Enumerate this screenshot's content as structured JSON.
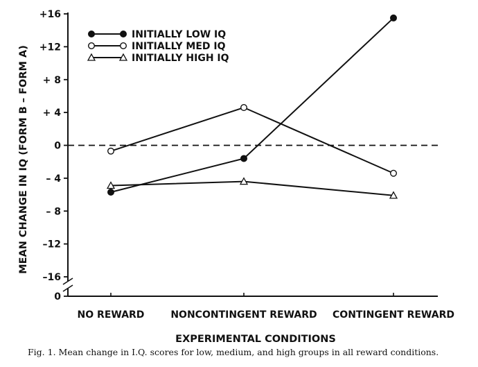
{
  "caption": "Fig. 1. Mean change in I.Q. scores for low, medium, and high groups in all reward conditions.",
  "chart_data": {
    "type": "line",
    "title": "",
    "xlabel": "EXPERIMENTAL CONDITIONS",
    "ylabel": "MEAN CHANGE IN IQ (FORM B – FORM A)",
    "categories": [
      "NO REWARD",
      "NONCONTINGENT REWARD",
      "CONTINGENT REWARD"
    ],
    "ylim": [
      -16,
      16
    ],
    "yticks": [
      16,
      12,
      8,
      4,
      0,
      -4,
      -8,
      -12,
      -16
    ],
    "ytick_labels": [
      "+16",
      "+12",
      "+ 8",
      "+ 4",
      "0",
      "– 4",
      "– 8",
      "–12",
      "–16"
    ],
    "y_break_label": "0",
    "reference_line": {
      "y": 0,
      "style": "dashed"
    },
    "legend_position": "top-left",
    "series": [
      {
        "name": "INITIALLY LOW IQ",
        "marker": "filled-circle",
        "values": [
          -5.7,
          -1.6,
          15.5
        ]
      },
      {
        "name": "INITIALLY MED IQ",
        "marker": "open-circle",
        "values": [
          -0.7,
          4.6,
          -3.4
        ]
      },
      {
        "name": "INITIALLY HIGH IQ",
        "marker": "open-triangle",
        "values": [
          -4.9,
          -4.4,
          -6.1
        ]
      }
    ]
  }
}
